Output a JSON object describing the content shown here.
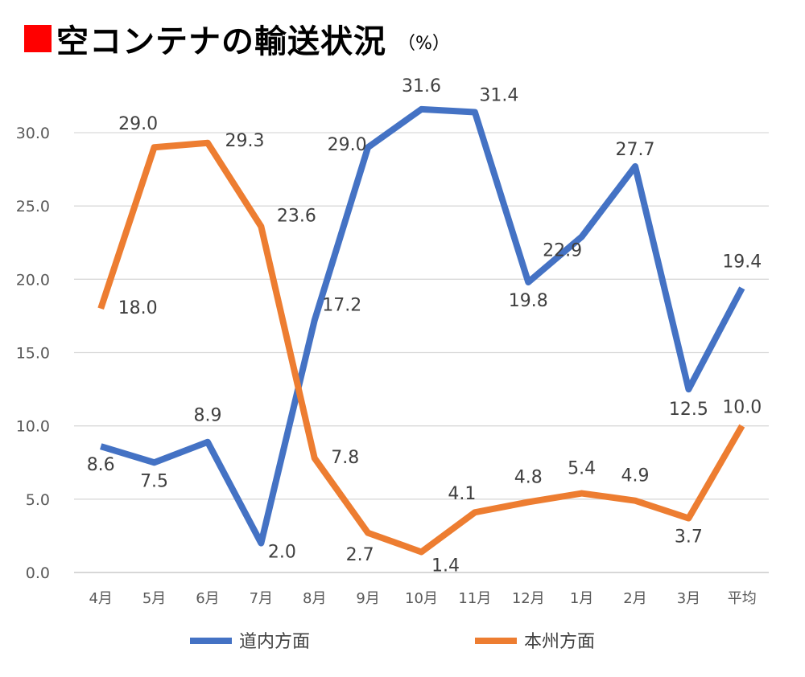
{
  "title": {
    "text": "空コンテナの輸送状況",
    "unit": "（%）",
    "marker_color": "#ff0000"
  },
  "chart_data": {
    "type": "line",
    "categories": [
      "4月",
      "5月",
      "6月",
      "7月",
      "8月",
      "9月",
      "10月",
      "11月",
      "12月",
      "1月",
      "2月",
      "3月",
      "平均"
    ],
    "series": [
      {
        "name": "道内方面",
        "color": "#4472c4",
        "values": [
          8.6,
          7.5,
          8.9,
          2.0,
          17.2,
          29.0,
          31.6,
          31.4,
          19.8,
          22.9,
          27.7,
          12.5,
          19.4
        ],
        "labels": [
          "8.6",
          "7.5",
          "8.9",
          "2.0",
          "17.2",
          "29.0",
          "31.6",
          "31.4",
          "19.8",
          "22.9",
          "27.7",
          "12.5",
          "19.4"
        ]
      },
      {
        "name": "本州方面",
        "color": "#ed7d31",
        "values": [
          18.0,
          29.0,
          29.3,
          23.6,
          7.8,
          2.7,
          1.4,
          4.1,
          4.8,
          5.4,
          4.9,
          3.7,
          10.0
        ],
        "labels": [
          "18.0",
          "29.0",
          "29.3",
          "23.6",
          "7.8",
          "2.7",
          "1.4",
          "4.1",
          "4.8",
          "5.4",
          "4.9",
          "3.7",
          "10.0"
        ]
      }
    ],
    "yticks": [
      "0.0",
      "5.0",
      "10.0",
      "15.0",
      "20.0",
      "25.0",
      "30.0"
    ],
    "ylim": [
      0,
      32.5
    ],
    "grid": true,
    "legend": "bottom"
  }
}
